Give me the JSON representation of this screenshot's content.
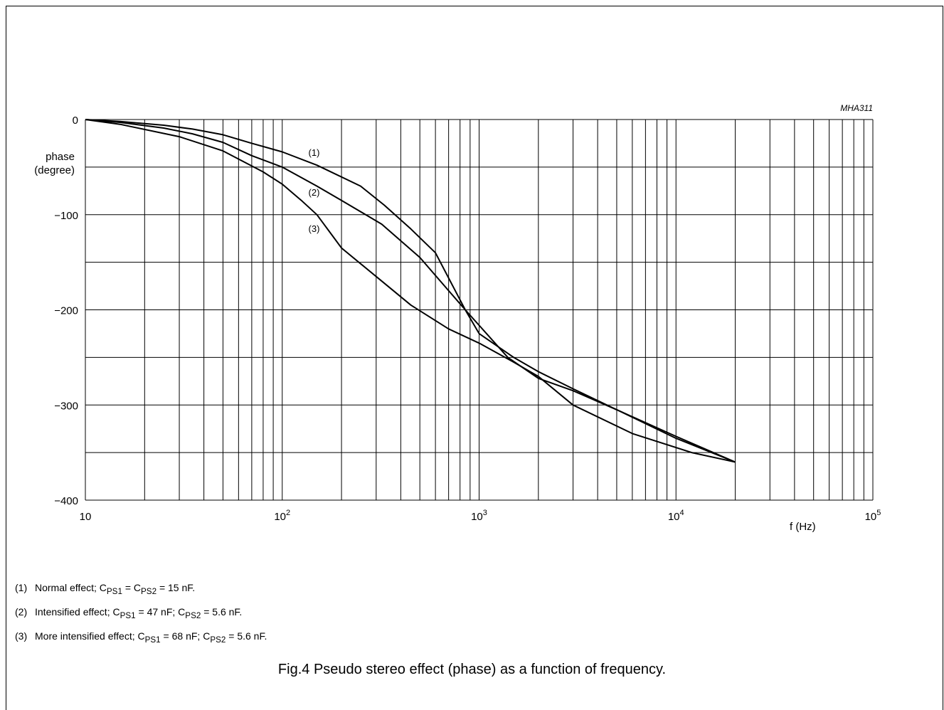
{
  "chart_data": {
    "type": "line",
    "title": "",
    "xlabel": "f (Hz)",
    "ylabel_line1": "phase",
    "ylabel_line2": "(degree)",
    "code": "MHA311",
    "x_scale": "log",
    "xlim": [
      10,
      100000
    ],
    "ylim": [
      -400,
      0
    ],
    "grid": true,
    "x_major_ticks": [
      {
        "value": 10,
        "base": "10",
        "exp": ""
      },
      {
        "value": 100,
        "base": "10",
        "exp": "2"
      },
      {
        "value": 1000,
        "base": "10",
        "exp": "3"
      },
      {
        "value": 10000,
        "base": "10",
        "exp": "4"
      },
      {
        "value": 100000,
        "base": "10",
        "exp": "5"
      }
    ],
    "y_ticks": [
      {
        "value": 0,
        "label": "0"
      },
      {
        "value": -100,
        "label": "−100"
      },
      {
        "value": -200,
        "label": "−200"
      },
      {
        "value": -300,
        "label": "−300"
      },
      {
        "value": -400,
        "label": "−400"
      }
    ],
    "y_grid": [
      0,
      -50,
      -100,
      -150,
      -200,
      -250,
      -300,
      -350,
      -400
    ],
    "series": [
      {
        "name": "(1)",
        "x": [
          10,
          15,
          25,
          35,
          50,
          70,
          100,
          150,
          250,
          330,
          450,
          600,
          850,
          1000,
          1500,
          2000,
          3000,
          5000,
          10000,
          20000
        ],
        "y": [
          0,
          -2,
          -6,
          -10,
          -16,
          -25,
          -34,
          -48,
          -70,
          -90,
          -115,
          -140,
          -200,
          -225,
          -250,
          -265,
          -283,
          -305,
          -333,
          -360
        ]
      },
      {
        "name": "(2)",
        "x": [
          10,
          15,
          25,
          35,
          50,
          70,
          100,
          150,
          200,
          320,
          500,
          850,
          1400,
          2000,
          3000,
          5000,
          10000,
          20000
        ],
        "y": [
          0,
          -3,
          -9,
          -15,
          -24,
          -38,
          -50,
          -70,
          -85,
          -110,
          -145,
          -200,
          -250,
          -272,
          -285,
          -305,
          -335,
          -360
        ]
      },
      {
        "name": "(3)",
        "x": [
          10,
          15,
          30,
          50,
          80,
          100,
          125,
          150,
          200,
          300,
          450,
          700,
          1000,
          1500,
          2000,
          3000,
          6000,
          12000,
          20000
        ],
        "y": [
          0,
          -5,
          -18,
          -33,
          -55,
          -68,
          -85,
          -100,
          -135,
          -165,
          -195,
          -220,
          -235,
          -255,
          -270,
          -300,
          -330,
          -350,
          -360
        ]
      }
    ],
    "series_label_x": [
      150,
      150,
      150
    ],
    "series_label_y": [
      -35,
      -77,
      -115
    ]
  },
  "notes": [
    {
      "num": "(1)",
      "pre": "Normal effect; C",
      "s1": "PS1",
      "mid": " = C",
      "s2": "PS2",
      "post": " = 15 nF."
    },
    {
      "num": "(2)",
      "pre": "Intensified effect; C",
      "s1": "PS1",
      "mid": " = 47 nF; C",
      "s2": "PS2",
      "post": " = 5.6 nF."
    },
    {
      "num": "(3)",
      "pre": "More intensified effect; C",
      "s1": "PS1",
      "mid": " = 68 nF; C",
      "s2": "PS2",
      "post": " = 5.6 nF."
    }
  ],
  "caption": "Fig.4  Pseudo stereo effect (phase) as a function of frequency."
}
